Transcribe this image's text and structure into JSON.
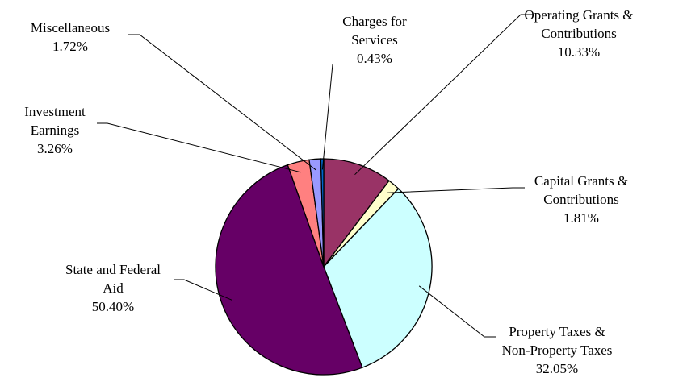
{
  "chart_data": {
    "type": "pie",
    "title": "",
    "start_angle_deg": 0,
    "direction": "clockwise",
    "slices": [
      {
        "label": [
          "Operating Grants &",
          "Contributions"
        ],
        "percent_label": "10.33%",
        "value": 10.33,
        "color": "#993366"
      },
      {
        "label": [
          "Capital Grants &",
          "Contributions"
        ],
        "percent_label": "1.81%",
        "value": 1.81,
        "color": "#FFFFCC"
      },
      {
        "label": [
          "Property Taxes &",
          "Non-Property Taxes"
        ],
        "percent_label": "32.05%",
        "value": 32.05,
        "color": "#CCFFFF"
      },
      {
        "label": [
          "State and Federal",
          "Aid"
        ],
        "percent_label": "50.40%",
        "value": 50.4,
        "color": "#660066"
      },
      {
        "label": [
          "Investment",
          "Earnings"
        ],
        "percent_label": "3.26%",
        "value": 3.26,
        "color": "#FF8080"
      },
      {
        "label": [
          "Miscellaneous"
        ],
        "percent_label": "1.72%",
        "value": 1.72,
        "color": "#9999FF"
      },
      {
        "label": [
          "Charges for",
          "Services"
        ],
        "percent_label": "0.43%",
        "value": 0.43,
        "color": "#0066CC"
      }
    ]
  }
}
